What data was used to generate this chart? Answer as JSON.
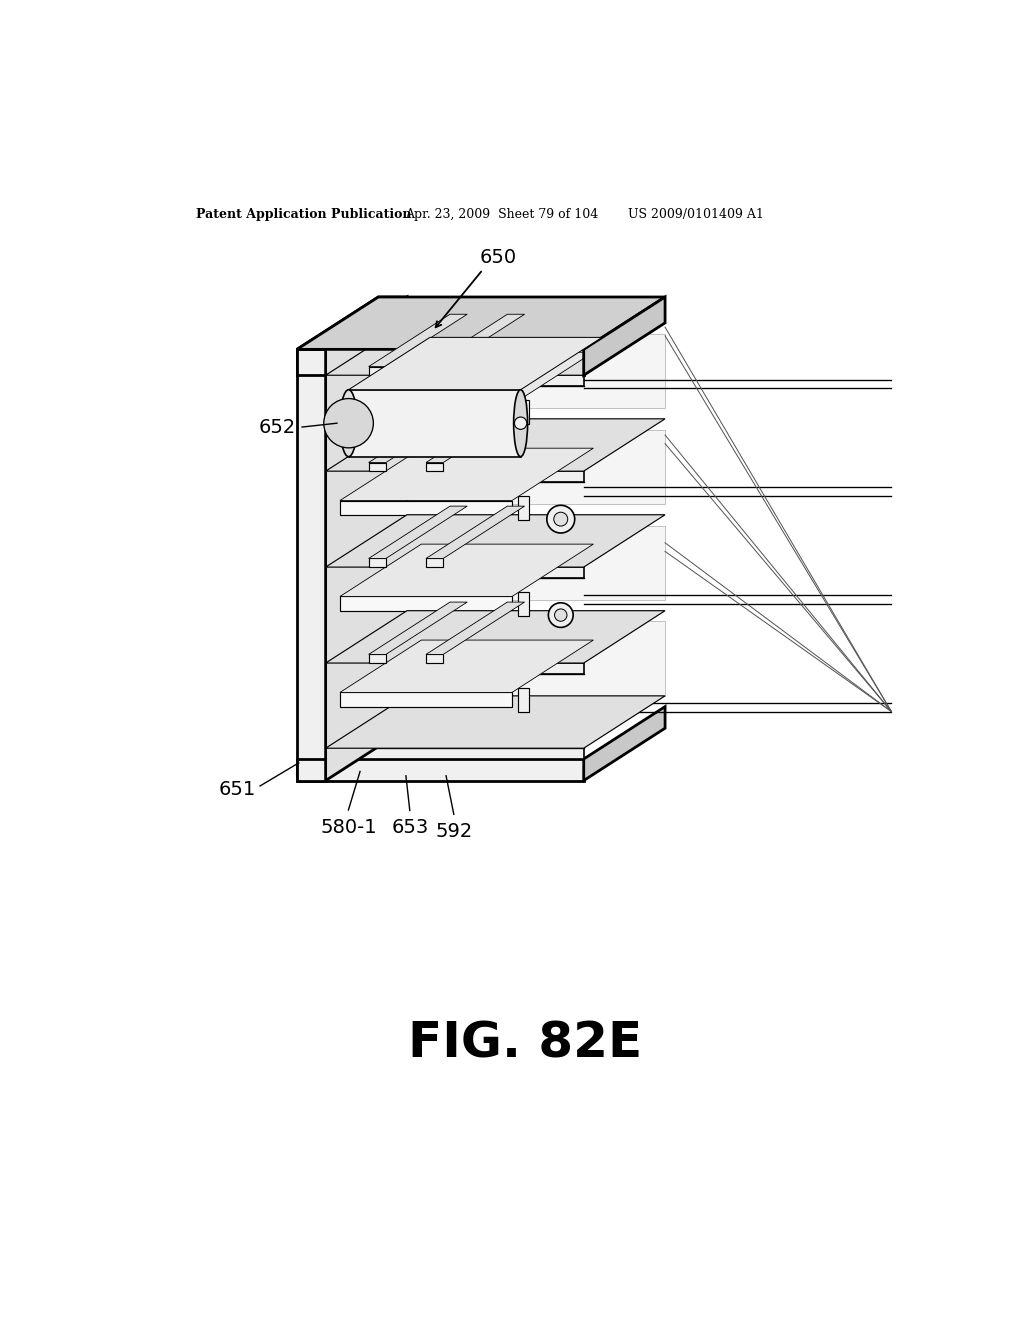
{
  "bg": "#ffffff",
  "tc": "#000000",
  "lc": "#000000",
  "header_left": "Patent Application Publication",
  "header_mid": "Apr. 23, 2009  Sheet 79 of 104",
  "header_right": "US 2009/0101409 A1",
  "fig_label": "FIG. 82E",
  "lw": 1.2,
  "lw_thin": 0.7,
  "lw_thick": 1.8,
  "gray_light": "#e8e8e8",
  "gray_mid": "#cccccc",
  "gray_dark": "#999999"
}
